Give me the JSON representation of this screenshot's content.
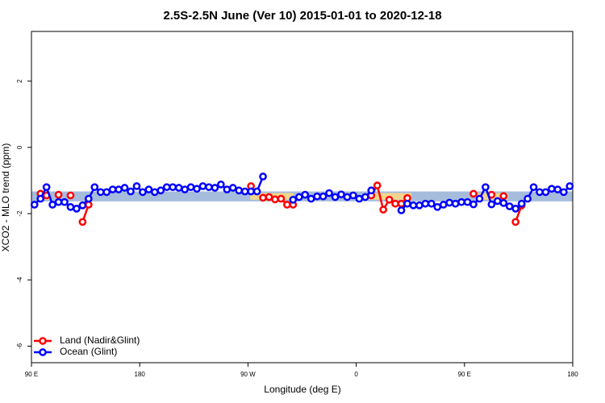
{
  "chart_data": {
    "type": "line",
    "title": "2.5S-2.5N June (Ver 10)   2015-01-01 to 2020-12-18",
    "x_label": "Longitude (deg E)",
    "y_label": "XCO2 - MLO trend (ppm)",
    "x": [
      92.5,
      97.5,
      102.5,
      107.5,
      112.5,
      117.5,
      122.5,
      127.5,
      132.5,
      137.5,
      142.5,
      147.5,
      152.5,
      157.5,
      162.5,
      167.5,
      172.5,
      177.5,
      182.5,
      187.5,
      192.5,
      197.5,
      202.5,
      207.5,
      212.5,
      217.5,
      222.5,
      227.5,
      232.5,
      237.5,
      242.5,
      247.5,
      252.5,
      257.5,
      262.5,
      267.5,
      272.5,
      277.5,
      282.5,
      287.5,
      292.5,
      297.5,
      302.5,
      307.5,
      312.5,
      317.5,
      322.5,
      327.5,
      332.5,
      337.5,
      342.5,
      347.5,
      352.5,
      357.5,
      362.5,
      367.5,
      372.5,
      377.5,
      382.5,
      387.5,
      392.5,
      397.5,
      402.5,
      407.5,
      412.5,
      417.5,
      422.5,
      427.5,
      432.5,
      437.5,
      442.5,
      447.5,
      452.5,
      457.5,
      462.5,
      467.5,
      472.5,
      477.5,
      482.5,
      487.5,
      492.5,
      497.5,
      502.5,
      507.5,
      512.5,
      517.5,
      522.5,
      527.5,
      532.5,
      537.5
    ],
    "series": [
      {
        "name": "Land (Nadir&Glint)",
        "color": "#ff0000",
        "values": [
          null,
          -1.4,
          -1.45,
          null,
          -1.43,
          null,
          -1.45,
          null,
          -2.25,
          -1.73,
          null,
          null,
          null,
          null,
          null,
          null,
          null,
          null,
          null,
          null,
          null,
          null,
          null,
          null,
          null,
          null,
          null,
          null,
          null,
          null,
          null,
          null,
          null,
          null,
          null,
          null,
          -1.17,
          null,
          -1.52,
          -1.5,
          -1.57,
          -1.55,
          -1.73,
          -1.73,
          null,
          null,
          null,
          null,
          null,
          null,
          null,
          null,
          null,
          null,
          null,
          null,
          -1.45,
          -1.15,
          -1.88,
          -1.58,
          -1.7,
          -1.7,
          -1.53,
          null,
          null,
          null,
          null,
          null,
          null,
          null,
          null,
          null,
          null,
          -1.4,
          null,
          null,
          -1.43,
          null,
          -1.47,
          null,
          -2.25,
          -1.75,
          null,
          null,
          null,
          null,
          null,
          null,
          null,
          null
        ]
      },
      {
        "name": "Ocean (Glint)",
        "color": "#0000ff",
        "values": [
          -1.73,
          -1.55,
          -1.2,
          -1.73,
          -1.65,
          -1.65,
          -1.8,
          -1.85,
          -1.75,
          -1.55,
          -1.2,
          -1.35,
          -1.35,
          -1.27,
          -1.27,
          -1.22,
          -1.33,
          -1.17,
          -1.35,
          -1.27,
          -1.35,
          -1.3,
          -1.2,
          -1.2,
          -1.22,
          -1.27,
          -1.2,
          -1.25,
          -1.17,
          -1.2,
          -1.22,
          -1.12,
          -1.27,
          -1.22,
          -1.3,
          -1.33,
          -1.33,
          -1.33,
          -0.88,
          null,
          null,
          null,
          null,
          -1.58,
          -1.5,
          -1.43,
          -1.55,
          -1.48,
          -1.48,
          -1.38,
          -1.5,
          -1.42,
          -1.5,
          -1.45,
          -1.55,
          -1.5,
          -1.3,
          null,
          null,
          null,
          null,
          -1.9,
          -1.7,
          -1.75,
          -1.75,
          -1.7,
          -1.7,
          -1.8,
          -1.73,
          -1.67,
          -1.7,
          -1.65,
          -1.65,
          -1.72,
          -1.55,
          -1.2,
          -1.72,
          -1.62,
          -1.68,
          -1.78,
          -1.85,
          -1.7,
          -1.55,
          -1.2,
          -1.35,
          -1.35,
          -1.25,
          -1.27,
          -1.35,
          -1.17
        ]
      }
    ],
    "band": {
      "range": [
        -1.63,
        -1.33
      ],
      "color": "#a6bcdc"
    },
    "land_bands": {
      "color": "#f3d58c",
      "ranges": [
        [
          97,
          105
        ],
        [
          272,
          308
        ],
        [
          369,
          406
        ],
        [
          459,
          486
        ]
      ]
    },
    "xlim": [
      90,
      540
    ],
    "xticks": [
      {
        "value": 90,
        "label": "90 E"
      },
      180,
      {
        "value": 270,
        "label": "90 W"
      },
      {
        "value": 360,
        "label": "0"
      },
      {
        "value": 450,
        "label": "90 E"
      },
      {
        "value": 540,
        "label": "180"
      }
    ],
    "ylim": [
      -6.5,
      3.5
    ],
    "yticks": [
      -6,
      -4,
      -2,
      0,
      2
    ],
    "legend": "lower left"
  }
}
